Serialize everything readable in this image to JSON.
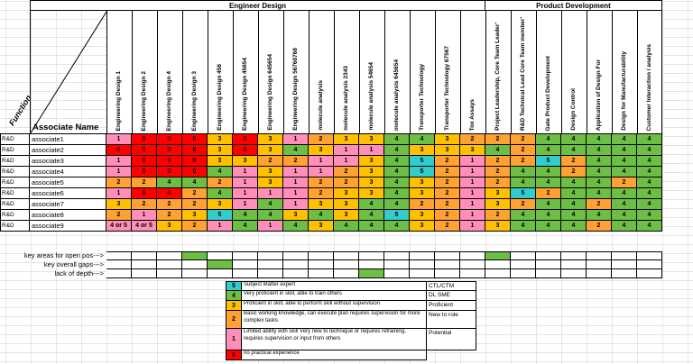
{
  "groups": {
    "engineer_design": "Engineer Design",
    "product_development": "Product Development"
  },
  "corner": {
    "function_label": "Function",
    "associate_name_label": "Associate Name"
  },
  "skills": [
    "Engineering Design 1",
    "Engineering Design 2",
    "Engineering Design 4",
    "Engineering Design 3",
    "Engineering Design 456",
    "Engineering Design 45654",
    "Engineering Design 645654",
    "Engineering Design 56768768",
    "molecule analysis",
    "molecule analysis 2343",
    "molecule analysis 54654",
    "molecule analysis 645654",
    "Transporter Technology",
    "Transporter Technology 67567",
    "Tox Assays",
    "Project Leadership, Core Team Leader'",
    "R&D Technical Lead Core Team member'",
    "Gate Product Development",
    "Design Control",
    "Application of Design For",
    "Design for Manufacturability",
    "Customer Interaction / analysis"
  ],
  "group1_col_count": 15,
  "rows": [
    {
      "function": "R&D",
      "name": "associate1",
      "values": [
        1,
        0,
        0,
        0,
        3,
        0,
        3,
        1,
        2,
        3,
        3,
        4,
        4,
        3,
        2,
        2,
        2,
        4,
        4,
        4,
        4,
        4
      ]
    },
    {
      "function": "R&D",
      "name": "associate2",
      "values": [
        0,
        0,
        0,
        0,
        3,
        0,
        3,
        4,
        3,
        1,
        1,
        4,
        3,
        3,
        3,
        4,
        2,
        4,
        4,
        4,
        4,
        4
      ]
    },
    {
      "function": "R&D",
      "name": "associate3",
      "values": [
        1,
        0,
        0,
        0,
        3,
        3,
        2,
        2,
        1,
        1,
        3,
        4,
        5,
        2,
        1,
        2,
        2,
        5,
        2,
        4,
        4,
        4
      ]
    },
    {
      "function": "R&D",
      "name": "associate4",
      "values": [
        1,
        0,
        0,
        0,
        4,
        1,
        3,
        1,
        1,
        2,
        3,
        4,
        5,
        2,
        1,
        2,
        4,
        4,
        2,
        4,
        4,
        4
      ]
    },
    {
      "function": "R&D",
      "name": "associate5",
      "values": [
        2,
        2,
        4,
        4,
        2,
        1,
        3,
        1,
        2,
        2,
        3,
        4,
        3,
        2,
        1,
        2,
        4,
        4,
        4,
        4,
        2,
        4
      ]
    },
    {
      "function": "R&D",
      "name": "associate6",
      "values": [
        1,
        0,
        0,
        2,
        4,
        1,
        1,
        1,
        2,
        3,
        3,
        4,
        3,
        2,
        1,
        3,
        5,
        2,
        4,
        4,
        4,
        4
      ]
    },
    {
      "function": "R&D",
      "name": "associate7",
      "values": [
        3,
        2,
        2,
        2,
        3,
        1,
        4,
        1,
        3,
        3,
        4,
        4,
        2,
        2,
        1,
        3,
        2,
        4,
        4,
        2,
        4,
        4
      ]
    },
    {
      "function": "R&D",
      "name": "associate8",
      "values": [
        2,
        1,
        2,
        3,
        5,
        4,
        4,
        3,
        4,
        3,
        4,
        5,
        3,
        2,
        1,
        2,
        4,
        4,
        4,
        4,
        4,
        4
      ]
    },
    {
      "function": "R&D",
      "name": "associate9",
      "values": [
        "4 or 5",
        "4 or 5",
        3,
        2,
        1,
        4,
        1,
        4,
        3,
        4,
        4,
        4,
        3,
        2,
        1,
        3,
        4,
        4,
        4,
        2,
        4,
        4
      ]
    }
  ],
  "value_colors": {
    "0": "red",
    "1": "pink",
    "2": "orange",
    "3": "yellow",
    "4": "green",
    "5": "cyan"
  },
  "cell_color_overrides": {
    "8": {
      "0": "pink",
      "1": "pink"
    }
  },
  "annotations": [
    {
      "label": "key areas for open pos--->",
      "green_cols": [
        3,
        15
      ]
    },
    {
      "label": "key overall gaps--->",
      "green_cols": [
        4
      ]
    },
    {
      "label": "lack of depth--->",
      "green_cols": [
        10
      ]
    }
  ],
  "legend": {
    "entries": [
      {
        "value": "5",
        "color": "cyan",
        "description": "Subject Matter expert",
        "tag": "CTL/CTM"
      },
      {
        "value": "4",
        "color": "green",
        "description": "Very proficient in skill, able to train others",
        "tag": "DL SME"
      },
      {
        "value": "3",
        "color": "yellow",
        "description": "Proficient in skill, able to perform skill without supervision",
        "tag": "Proficient"
      },
      {
        "value": "2",
        "color": "orange",
        "description": "Basic working knowledge, can execute plan requires supervision for more complex tasks",
        "tag": "New to role"
      },
      {
        "value": "1",
        "color": "pink",
        "description": "Limited ability with skill Very new to technique or requires retraining, requires supervision or input from others",
        "tag": "Potential"
      },
      {
        "value": "0",
        "color": "red",
        "description": "no practical experience",
        "tag": ""
      }
    ]
  },
  "colors": {
    "red": "#FF0000",
    "pink": "#FF8FB8",
    "orange": "#FFA133",
    "yellow": "#FFC000",
    "green": "#6DBE45",
    "cyan": "#33CCCC"
  }
}
